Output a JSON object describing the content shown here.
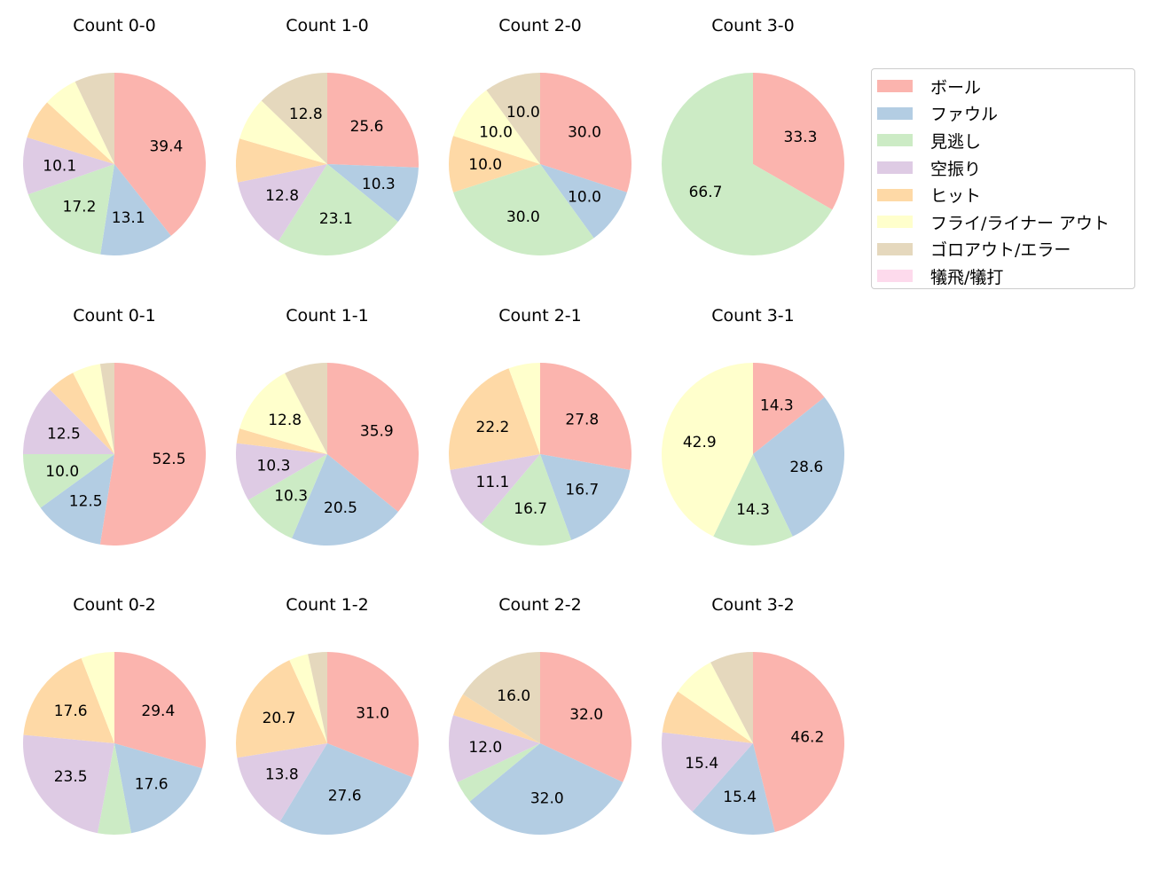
{
  "chart_data": {
    "type": "pie",
    "start_angle": 90,
    "direction": "clockwise",
    "legend_position": "right",
    "categories": [
      "ボール",
      "ファウル",
      "見逃し",
      "空振り",
      "ヒット",
      "フライ/ライナー アウト",
      "ゴロアウト/エラー",
      "犠飛/犠打"
    ],
    "colors": [
      "#fbb4ae",
      "#b3cde3",
      "#ccebc5",
      "#decbe4",
      "#fed9a6",
      "#ffffcc",
      "#e5d8bd",
      "#fddaec"
    ],
    "label_min_percent": 10,
    "charts": [
      {
        "title": "Count 0-0",
        "values": [
          39.4,
          13.1,
          17.2,
          10.1,
          7.1,
          6.1,
          7.1,
          0
        ]
      },
      {
        "title": "Count 1-0",
        "values": [
          25.6,
          10.3,
          23.1,
          12.8,
          7.7,
          7.7,
          12.8,
          0
        ]
      },
      {
        "title": "Count 2-0",
        "values": [
          30.0,
          10.0,
          30.0,
          0,
          10.0,
          10.0,
          10.0,
          0
        ]
      },
      {
        "title": "Count 3-0",
        "values": [
          33.3,
          0,
          66.7,
          0,
          0,
          0,
          0,
          0
        ]
      },
      {
        "title": "Count 0-1",
        "values": [
          52.5,
          12.5,
          10.0,
          12.5,
          5.0,
          5.0,
          2.5,
          0
        ]
      },
      {
        "title": "Count 1-1",
        "values": [
          35.9,
          20.5,
          10.3,
          10.3,
          2.6,
          12.8,
          7.7,
          0
        ]
      },
      {
        "title": "Count 2-1",
        "values": [
          27.8,
          16.7,
          16.7,
          11.1,
          22.2,
          5.6,
          0,
          0
        ]
      },
      {
        "title": "Count 3-1",
        "values": [
          14.3,
          28.6,
          14.3,
          0,
          0,
          42.9,
          0,
          0
        ]
      },
      {
        "title": "Count 0-2",
        "values": [
          29.4,
          17.6,
          5.9,
          23.5,
          17.6,
          5.9,
          0,
          0
        ]
      },
      {
        "title": "Count 1-2",
        "values": [
          31.0,
          27.6,
          0,
          13.8,
          20.7,
          3.4,
          3.4,
          0
        ]
      },
      {
        "title": "Count 2-2",
        "values": [
          32.0,
          32.0,
          4.0,
          12.0,
          4.0,
          0,
          16.0,
          0
        ]
      },
      {
        "title": "Count 3-2",
        "values": [
          46.2,
          15.4,
          0,
          15.4,
          7.7,
          7.7,
          7.7,
          0
        ]
      }
    ]
  }
}
